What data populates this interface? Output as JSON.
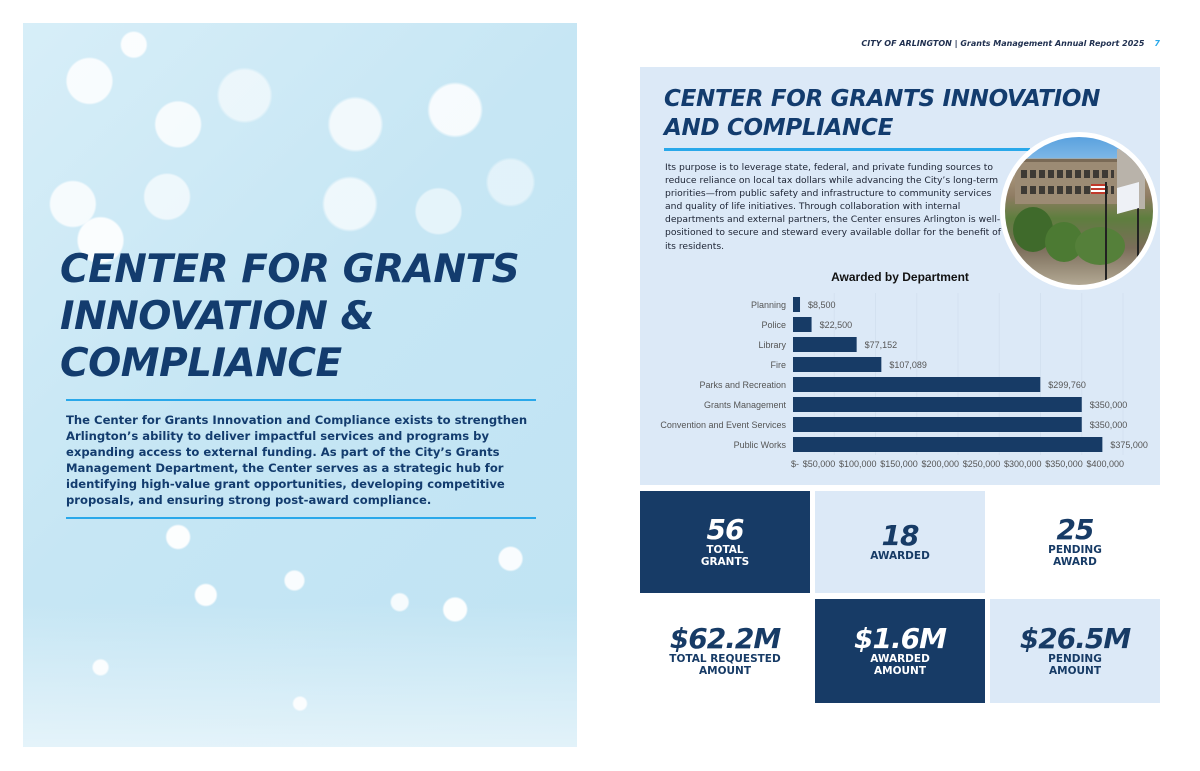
{
  "header": {
    "text": "CITY OF ARLINGTON | Grants Management Annual Report 2025",
    "page_number": "7"
  },
  "left_page": {
    "title_lines": [
      "CENTER FOR GRANTS",
      "INNOVATION &",
      "COMPLIANCE"
    ],
    "body": "The Center for Grants Innovation and Compliance exists to strengthen Arlington’s ability to deliver impactful services and programs by expanding access to external funding. As part of the City’s Grants Management Department, the Center serves as a strategic hub for identifying high-value grant opportunities, developing competitive proposals, and ensuring strong post-award compliance."
  },
  "panel": {
    "title_lines": [
      "CENTER FOR GRANTS INNOVATION",
      "AND COMPLIANCE"
    ],
    "body": "Its purpose is to leverage state, federal, and private funding sources to reduce reliance on local tax dollars while advancing the City’s long-term priorities—from public safety and infrastructure to community services and quality of life initiatives. Through collaboration with internal departments and external partners, the Center ensures Arlington is well-positioned to secure and steward every available dollar for the benefit of its residents."
  },
  "chart_data": {
    "type": "bar",
    "orientation": "horizontal",
    "title": "Awarded by Department",
    "categories": [
      "Planning",
      "Police",
      "Library",
      "Fire",
      "Parks and Recreation",
      "Grants Management",
      "Convention and Event Services",
      "Public Works"
    ],
    "values": [
      8500,
      22500,
      77152,
      107089,
      299760,
      350000,
      350000,
      375000
    ],
    "data_labels": [
      "$8,500",
      "$22,500",
      "$77,152",
      "$107,089",
      "$299,760",
      "$350,000",
      "$350,000",
      "$375,000"
    ],
    "xlim": [
      0,
      400000
    ],
    "x_ticks": [
      0,
      50000,
      100000,
      150000,
      200000,
      250000,
      300000,
      350000,
      400000
    ],
    "x_tick_labels": [
      "$-",
      "$50,000",
      "$100,000",
      "$150,000",
      "$200,000",
      "$250,000",
      "$300,000",
      "$350,000",
      "$400,000"
    ],
    "xlabel": "",
    "ylabel": "",
    "grid": true,
    "bar_color": "#173b66"
  },
  "stats": [
    {
      "value": "56",
      "label_lines": [
        "TOTAL",
        "GRANTS"
      ],
      "style": "dark"
    },
    {
      "value": "18",
      "label_lines": [
        "AWARDED"
      ],
      "style": "light"
    },
    {
      "value": "25",
      "label_lines": [
        "PENDING",
        "AWARD"
      ],
      "style": "white"
    },
    {
      "value": "$62.2M",
      "label_lines": [
        "TOTAL REQUESTED",
        "AMOUNT"
      ],
      "style": "white"
    },
    {
      "value": "$1.6M",
      "label_lines": [
        "AWARDED",
        "AMOUNT"
      ],
      "style": "dark"
    },
    {
      "value": "$26.5M",
      "label_lines": [
        "PENDING",
        "AMOUNT"
      ],
      "style": "light"
    }
  ],
  "colors": {
    "navy": "#173b66",
    "accent": "#29a8ea",
    "panel_bg": "#dce9f7"
  }
}
